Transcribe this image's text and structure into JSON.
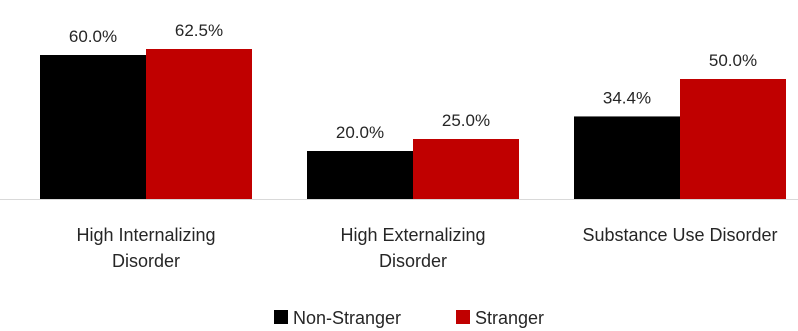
{
  "chart_data": {
    "type": "bar",
    "categories": [
      [
        "High Internalizing",
        "Disorder"
      ],
      [
        "High Externalizing",
        "Disorder"
      ],
      [
        "Substance Use Disorder"
      ]
    ],
    "series": [
      {
        "name": "Non-Stranger",
        "color": "#000000",
        "values": [
          60.0,
          20.0,
          34.4
        ],
        "labels": [
          "60.0%",
          "20.0%",
          "34.4%"
        ]
      },
      {
        "name": "Stranger",
        "color": "#c00000",
        "values": [
          62.5,
          25.0,
          50.0
        ],
        "labels": [
          "62.5%",
          "25.0%",
          "50.0%"
        ]
      }
    ],
    "ylim": [
      0,
      70
    ],
    "legend_position": "bottom",
    "grid": false
  }
}
